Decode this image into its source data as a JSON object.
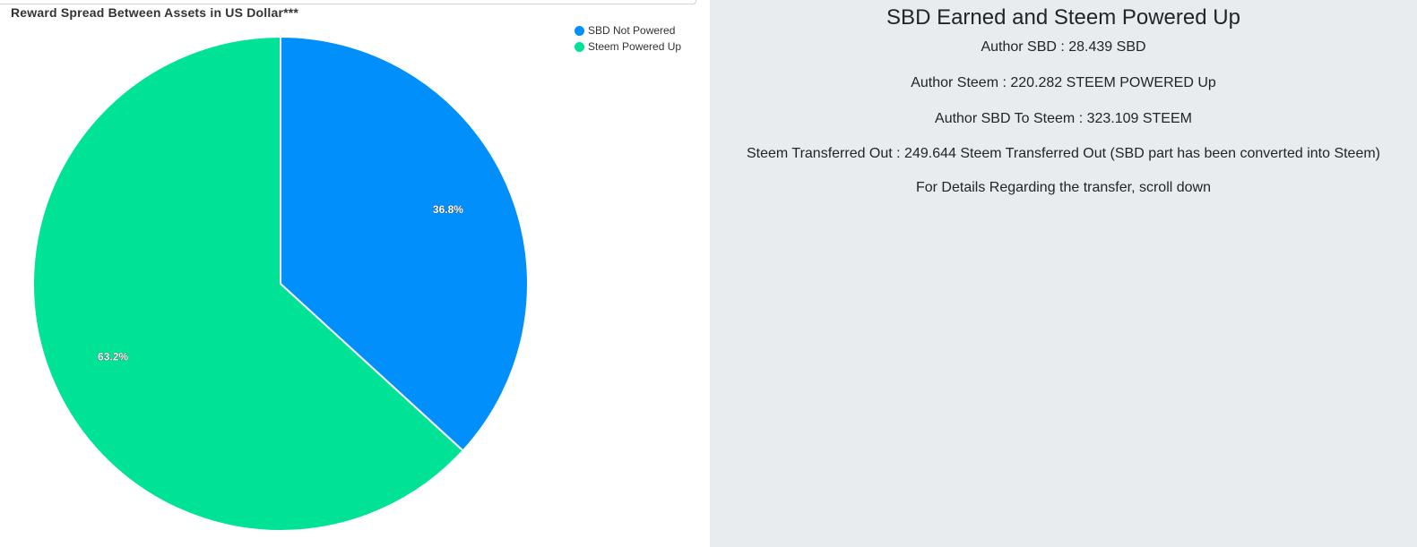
{
  "chart_data": {
    "type": "pie",
    "title": "Reward Spread Between Assets in US Dollar***",
    "legend_position": "top-right",
    "slices": [
      {
        "name": "SBD Not Powered",
        "value": 36.8,
        "label": "36.8%",
        "color": "#008ffb"
      },
      {
        "name": "Steem Powered Up",
        "value": 63.2,
        "label": "63.2%",
        "color": "#00e396"
      }
    ]
  },
  "stats": {
    "heading": "SBD Earned and Steem Powered Up",
    "lines": [
      "Author SBD : 28.439 SBD",
      "Author Steem : 220.282 STEEM POWERED Up",
      "Author SBD To Steem : 323.109 STEEM",
      "Steem Transferred Out : 249.644 Steem Transferred Out (SBD part has been converted into Steem)",
      "For Details Regarding the transfer, scroll down"
    ]
  }
}
